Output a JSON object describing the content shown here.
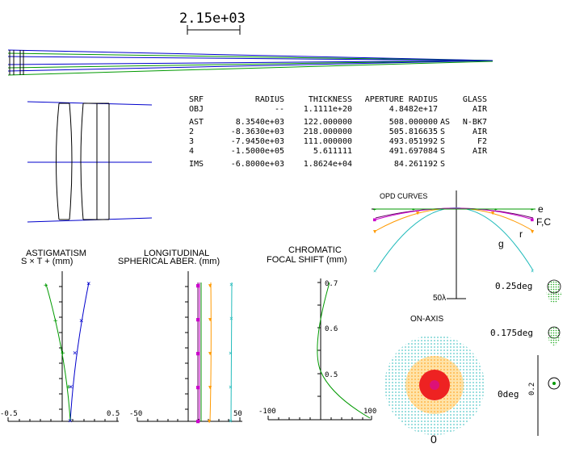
{
  "scale_bar": {
    "label": "2.15e+03"
  },
  "surface_table": {
    "headers": [
      "SRF",
      "RADIUS",
      "THICKNESS",
      "APERTURE RADIUS",
      "",
      "GLASS"
    ],
    "rows": [
      [
        "OBJ",
        "--",
        "1.1111e+20",
        "4.8482e+17",
        "",
        "AIR"
      ],
      [
        "AST",
        "8.3540e+03",
        "122.000000",
        "508.000000",
        "AS",
        "N-BK7"
      ],
      [
        "2",
        "-8.3630e+03",
        "218.000000",
        "505.816635",
        "S",
        "AIR"
      ],
      [
        "3",
        "-7.9450e+03",
        "111.000000",
        "493.051992",
        "S",
        "F2"
      ],
      [
        "4",
        "-1.5000e+05",
        "5.611111",
        "491.697084",
        "S",
        "AIR"
      ],
      [
        "IMS",
        "-6.8000e+03",
        "1.8624e+04",
        "84.261192",
        "S",
        ""
      ]
    ]
  },
  "opd": {
    "title": "OPD CURVES",
    "scale_label": "50λ",
    "curve_labels": [
      "e",
      "F,C",
      "r",
      "g"
    ]
  },
  "astig": {
    "title": "ASTIGMATISM",
    "legend": "S × T + (mm)",
    "xmin_label": "-0.5",
    "xmax_label": "0.5"
  },
  "lsa": {
    "title_line1": "LONGITUDINAL",
    "title_line2": "SPHERICAL ABER. (mm)",
    "xmin_label": "-50",
    "xmax_label": "50"
  },
  "chrom": {
    "title_line1": "CHROMATIC",
    "title_line2": "FOCAL SHIFT (mm)",
    "xmin_label": "-100",
    "xmax_label": "100",
    "ytick_labels": [
      "0.7",
      "0.6",
      "0.5"
    ]
  },
  "spots": {
    "on_axis_title": "ON-AXIS",
    "on_axis_scale": "0",
    "field_labels": [
      "0.25deg",
      "0.175deg",
      "0deg"
    ],
    "scale_label": "0.2"
  },
  "colors": {
    "ray_blue": "#0000cc",
    "ray_green": "#009900",
    "cyan": "#22bbbb",
    "orange": "#ff9900",
    "magenta": "#cc00cc",
    "red": "#dd0000",
    "purple": "#660066"
  }
}
